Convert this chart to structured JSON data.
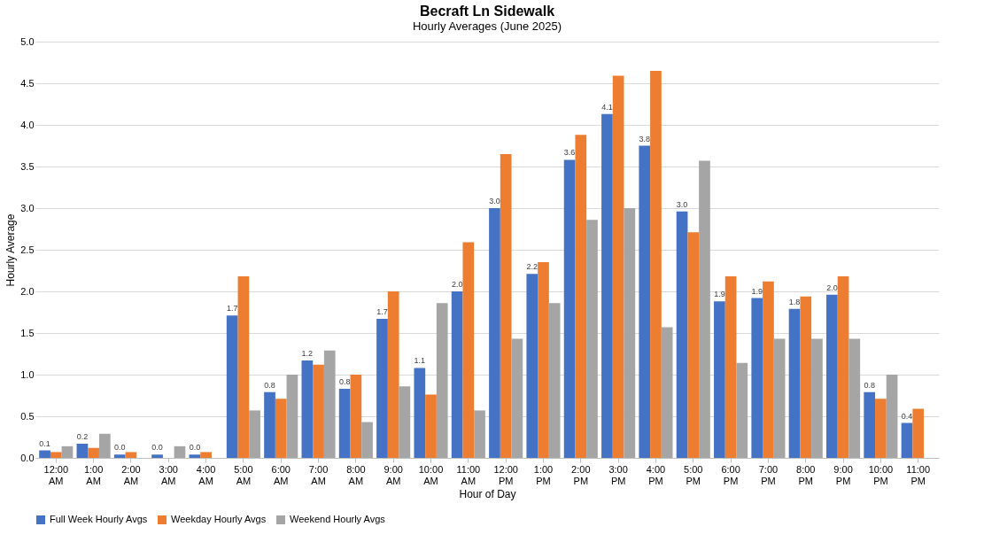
{
  "chart_data": {
    "type": "bar",
    "title": "Becraft Ln Sidewalk",
    "subtitle": "Hourly Averages (June 2025)",
    "xlabel": "Hour of Day",
    "ylabel": "Hourly Average",
    "categories": [
      "12:00 AM",
      "1:00 AM",
      "2:00 AM",
      "3:00 AM",
      "4:00 AM",
      "5:00 AM",
      "6:00 AM",
      "7:00 AM",
      "8:00 AM",
      "9:00 AM",
      "10:00 AM",
      "11:00 AM",
      "12:00 PM",
      "1:00 PM",
      "2:00 PM",
      "3:00 PM",
      "4:00 PM",
      "5:00 PM",
      "6:00 PM",
      "7:00 PM",
      "8:00 PM",
      "9:00 PM",
      "10:00 PM",
      "11:00 PM"
    ],
    "series": [
      {
        "name": "Full Week Hourly Avgs",
        "color": "#4472c4",
        "values": [
          0.09,
          0.17,
          0.04,
          0.04,
          0.04,
          1.71,
          0.79,
          1.17,
          0.83,
          1.67,
          1.08,
          2.0,
          3.0,
          2.21,
          3.58,
          4.13,
          3.75,
          2.96,
          1.88,
          1.92,
          1.79,
          1.96,
          0.79,
          0.42
        ],
        "value_labels": [
          "0.1",
          "0.2",
          "0.0",
          "0.0",
          "0.0",
          "1.7",
          "0.8",
          "1.2",
          "0.8",
          "1.7",
          "1.1",
          "2.0",
          "3.0",
          "2.2",
          "3.6",
          "4.1",
          "3.8",
          "3.0",
          "1.9",
          "1.9",
          "1.8",
          "2.0",
          "0.8",
          "0.4"
        ]
      },
      {
        "name": "Weekday Hourly Avgs",
        "color": "#ed7d31",
        "values": [
          0.07,
          0.12,
          0.07,
          0.0,
          0.07,
          2.18,
          0.71,
          1.12,
          1.0,
          2.0,
          0.76,
          2.59,
          3.65,
          2.35,
          3.88,
          4.59,
          4.65,
          2.71,
          2.18,
          2.12,
          1.94,
          2.18,
          0.71,
          0.59
        ]
      },
      {
        "name": "Weekend Hourly Avgs",
        "color": "#a5a5a5",
        "values": [
          0.14,
          0.29,
          0.0,
          0.14,
          0.0,
          0.57,
          1.0,
          1.29,
          0.43,
          0.86,
          1.86,
          0.57,
          1.43,
          1.86,
          2.86,
          3.0,
          1.57,
          3.57,
          1.14,
          1.43,
          1.43,
          1.43,
          1.0,
          null
        ]
      }
    ],
    "ylim": [
      0,
      5
    ],
    "yticks": [
      {
        "value": 0,
        "label": "0.0"
      },
      {
        "value": 0.5,
        "label": "0.5"
      },
      {
        "value": 1,
        "label": "1.0"
      },
      {
        "value": 1.5,
        "label": "1.5"
      },
      {
        "value": 2,
        "label": "2.0"
      },
      {
        "value": 2.5,
        "label": "2.5"
      },
      {
        "value": 3,
        "label": "3.0"
      },
      {
        "value": 3.5,
        "label": "3.5"
      },
      {
        "value": 4,
        "label": "4.0"
      },
      {
        "value": 4.5,
        "label": "4.5"
      },
      {
        "value": 5,
        "label": "5.0"
      }
    ],
    "grid": "y",
    "legend": "bottom"
  }
}
